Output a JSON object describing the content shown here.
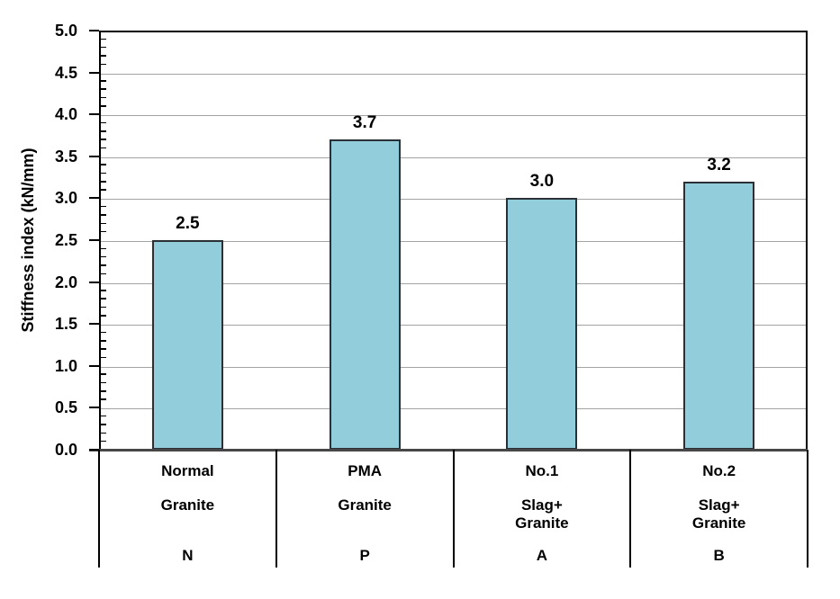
{
  "chart_data": {
    "type": "bar",
    "title": "",
    "xlabel": "",
    "ylabel": "Stiffness index (kN/mm)",
    "ylim": [
      0,
      5
    ],
    "y_major_step": 0.5,
    "y_minor_step": 0.1,
    "y_tick_labels": [
      "0.0",
      "0.5",
      "1.0",
      "1.5",
      "2.0",
      "2.5",
      "3.0",
      "3.5",
      "4.0",
      "4.5",
      "5.0"
    ],
    "grid": "horizontal-major",
    "legend_position": "none",
    "colors": {
      "bar_fill": "#92CDDC",
      "bar_border": "#2A3136",
      "gridline": "#A3A3A3",
      "axis": "#000000",
      "baseline": "#474747",
      "text": "#000000"
    },
    "categories": [
      {
        "row1": "Normal",
        "row2": "Granite",
        "code": "N",
        "value": 2.5,
        "value_label": "2.5"
      },
      {
        "row1": "PMA",
        "row2": "Granite",
        "code": "P",
        "value": 3.7,
        "value_label": "3.7"
      },
      {
        "row1": "No.1",
        "row2": "Slag+\nGranite",
        "code": "A",
        "value": 3.0,
        "value_label": "3.0"
      },
      {
        "row1": "No.2",
        "row2": "Slag+\nGranite",
        "code": "B",
        "value": 3.2,
        "value_label": "3.2"
      }
    ]
  }
}
